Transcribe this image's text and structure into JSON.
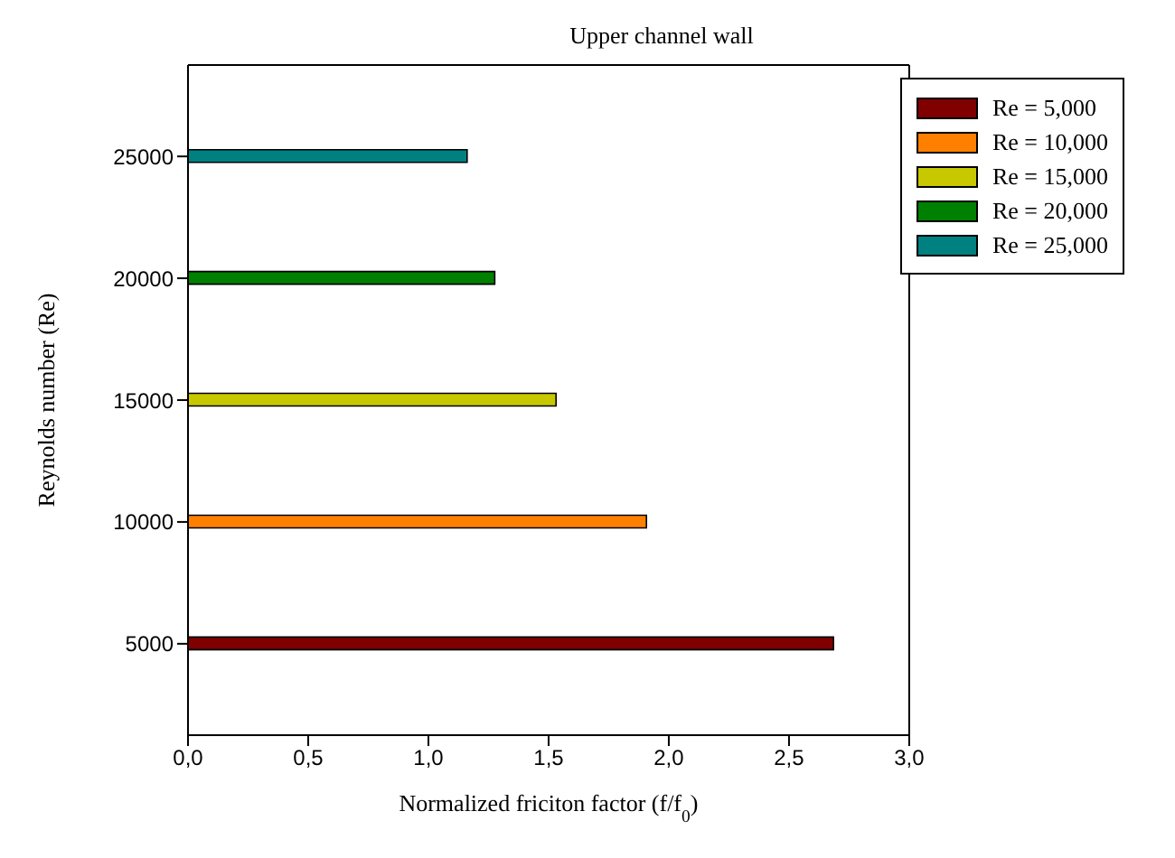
{
  "chart_data": {
    "type": "bar",
    "orientation": "horizontal",
    "title": "Upper channel wall",
    "xlabel": "Normalized friciton factor (f/f$_{0}$)",
    "ylabel": "Reynolds number (Re)",
    "x": [
      5000,
      10000,
      15000,
      20000,
      25000
    ],
    "series": [
      {
        "name": "Re = 5,000",
        "color": "#800000",
        "values": [
          2.685,
          null,
          null,
          null,
          null
        ]
      },
      {
        "name": "Re = 10,000",
        "color": "#ff8000",
        "values": [
          null,
          1.907,
          null,
          null,
          null
        ]
      },
      {
        "name": "Re = 15,000",
        "color": "#c8c800",
        "values": [
          null,
          null,
          1.531,
          null,
          null
        ]
      },
      {
        "name": "Re = 20,000",
        "color": "#008000",
        "values": [
          null,
          null,
          null,
          1.276,
          null
        ]
      },
      {
        "name": "Re = 25,000",
        "color": "#008080",
        "values": [
          null,
          null,
          null,
          null,
          1.161
        ]
      }
    ],
    "xlim": [
      0,
      3
    ],
    "xticks": [
      {
        "value": 0,
        "label": "0,0"
      },
      {
        "value": 0.5,
        "label": "0,5"
      },
      {
        "value": 1,
        "label": "1,0"
      },
      {
        "value": 1.5,
        "label": "1,5"
      },
      {
        "value": 2,
        "label": "2,0"
      },
      {
        "value": 2.5,
        "label": "2,5"
      },
      {
        "value": 3,
        "label": "3,0"
      }
    ],
    "ylim": [
      1250,
      28750
    ],
    "yticks": [
      5000,
      10000,
      15000,
      20000,
      25000
    ],
    "legend": "top right",
    "grid": false
  }
}
